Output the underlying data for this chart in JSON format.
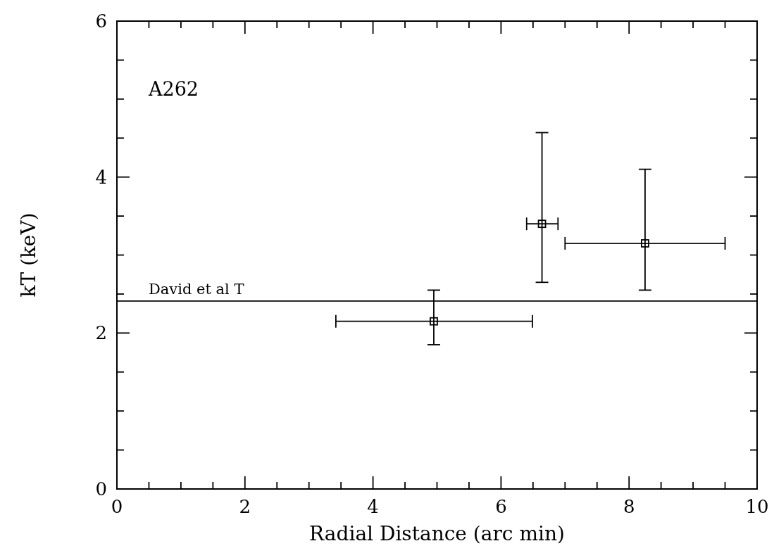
{
  "chart_data": {
    "type": "scatter",
    "xlabel": "Radial Distance (arc min)",
    "ylabel": "kT (keV)",
    "x": [
      4.95,
      6.64,
      8.25
    ],
    "values": [
      2.15,
      3.4,
      3.15
    ],
    "errors": [
      [
        1.85,
        2.55
      ],
      [
        2.65,
        4.57
      ],
      [
        2.55,
        4.1
      ]
    ],
    "xerrors": [
      [
        3.42,
        6.49
      ],
      [
        6.4,
        6.89
      ],
      [
        7.0,
        9.5
      ]
    ],
    "color": "#000000",
    "marker": "square",
    "xlim": [
      0,
      10
    ],
    "ylim": [
      0,
      6
    ],
    "xticks": [
      0,
      {
        "value": 0.5,
        "label": null
      },
      {
        "value": 1,
        "label": null
      },
      {
        "value": 1.5,
        "label": null
      },
      2,
      {
        "value": 2.5,
        "label": null
      },
      {
        "value": 3,
        "label": null
      },
      {
        "value": 3.5,
        "label": null
      },
      4,
      {
        "value": 4.5,
        "label": null
      },
      {
        "value": 5,
        "label": null
      },
      {
        "value": 5.5,
        "label": null
      },
      6,
      {
        "value": 6.5,
        "label": null
      },
      {
        "value": 7,
        "label": null
      },
      {
        "value": 7.5,
        "label": null
      },
      8,
      {
        "value": 8.5,
        "label": null
      },
      {
        "value": 9,
        "label": null
      },
      {
        "value": 9.5,
        "label": null
      },
      10
    ],
    "yticks": [
      0,
      {
        "value": 0.5,
        "label": null
      },
      {
        "value": 1,
        "label": null
      },
      {
        "value": 1.5,
        "label": null
      },
      2,
      {
        "value": 2.5,
        "label": null
      },
      {
        "value": 3,
        "label": null
      },
      {
        "value": 3.5,
        "label": null
      },
      4,
      {
        "value": 4.5,
        "label": null
      },
      {
        "value": 5,
        "label": null
      },
      {
        "value": 5.5,
        "label": null
      },
      6
    ],
    "ref_lines": [
      {
        "axis": "y",
        "value": 2.41,
        "label": "David et al T"
      }
    ],
    "annotations": [
      "A262"
    ],
    "grid": false
  }
}
